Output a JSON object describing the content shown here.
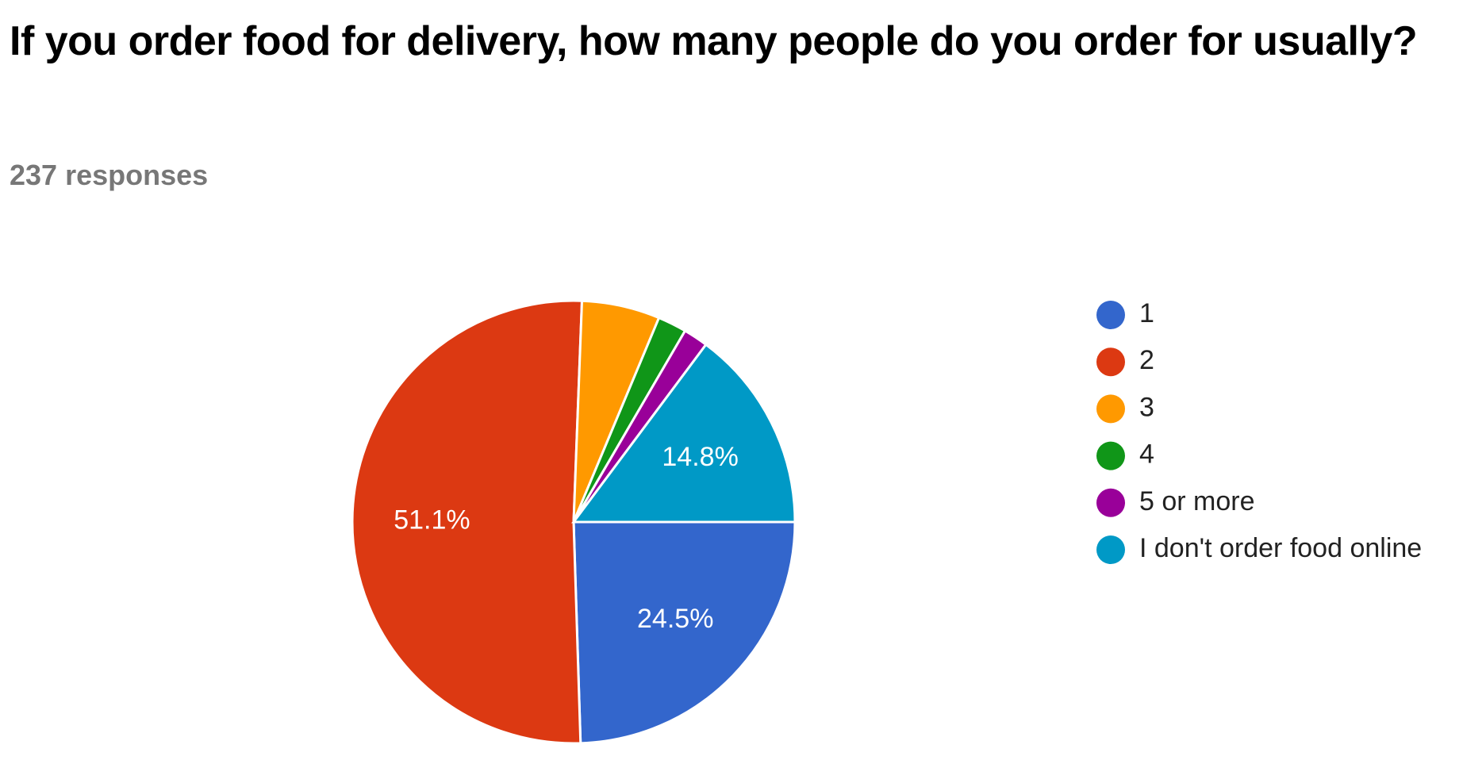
{
  "chart_data": {
    "type": "pie",
    "title": "If you order food for delivery, how many people do you order for usually?",
    "subtitle": "237 responses",
    "categories": [
      "1",
      "2",
      "3",
      "4",
      "5 or more",
      "I don't order food online"
    ],
    "values": [
      24.5,
      51.1,
      5.7,
      2.1,
      1.8,
      14.8
    ],
    "value_labels": [
      "24.5%",
      "51.1%",
      null,
      null,
      null,
      "14.8%"
    ],
    "colors": [
      "#3366cc",
      "#dc3912",
      "#ff9900",
      "#109618",
      "#990099",
      "#0099c6"
    ],
    "legend": "right"
  }
}
